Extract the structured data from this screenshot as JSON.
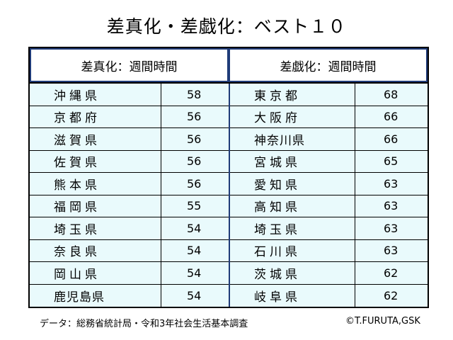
{
  "title": "差真化・差戯化：ベスト１０",
  "headers": {
    "left": "差真化：週間時間",
    "right": "差戯化：週間時間"
  },
  "left_rows": [
    {
      "name": "沖縄県",
      "value": "58"
    },
    {
      "name": "京都府",
      "value": "56"
    },
    {
      "name": "滋賀県",
      "value": "56"
    },
    {
      "name": "佐賀県",
      "value": "56"
    },
    {
      "name": "熊本県",
      "value": "56"
    },
    {
      "name": "福岡県",
      "value": "55"
    },
    {
      "name": "埼玉県",
      "value": "54"
    },
    {
      "name": "奈良県",
      "value": "54"
    },
    {
      "name": "岡山県",
      "value": "54"
    },
    {
      "name": "鹿児島県",
      "value": "54"
    }
  ],
  "right_rows": [
    {
      "name": "東京都",
      "value": "68"
    },
    {
      "name": "大阪府",
      "value": "66"
    },
    {
      "name": "神奈川県",
      "value": "66"
    },
    {
      "name": "宮城県",
      "value": "65"
    },
    {
      "name": "愛知県",
      "value": "63"
    },
    {
      "name": "高知県",
      "value": "63"
    },
    {
      "name": "埼玉県",
      "value": "63"
    },
    {
      "name": "石川県",
      "value": "63"
    },
    {
      "name": "茨城県",
      "value": "62"
    },
    {
      "name": "岐阜県",
      "value": "62"
    }
  ],
  "footer": {
    "source": "データ：総務省統計局・令和3年社会生活基本調査",
    "credit": "©T.FURUTA,GSK"
  },
  "colors": {
    "cell_background": "#e9fafc",
    "divider_blue": "#1f3b78"
  }
}
